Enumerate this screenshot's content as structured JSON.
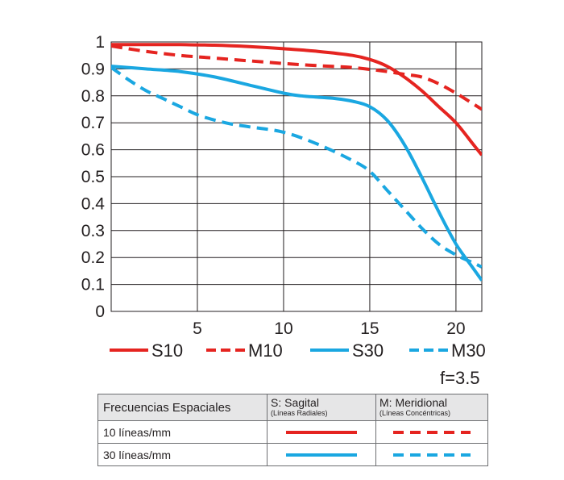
{
  "chart_data": {
    "type": "line",
    "xlim": [
      0,
      21.5
    ],
    "ylim": [
      0,
      1
    ],
    "x_ticks": [
      5,
      10,
      15,
      20
    ],
    "y_ticks": [
      0,
      0.1,
      0.2,
      0.3,
      0.4,
      0.5,
      0.6,
      0.7,
      0.8,
      0.9,
      1
    ],
    "grid": true,
    "legend_position": "bottom",
    "series": [
      {
        "name": "S10",
        "color": "#e52420",
        "dash": "solid",
        "x": [
          0,
          2,
          4,
          6,
          8,
          10,
          12,
          14,
          15,
          16,
          17,
          18,
          19,
          20,
          21,
          21.5
        ],
        "y": [
          0.99,
          0.99,
          0.99,
          0.988,
          0.983,
          0.975,
          0.965,
          0.95,
          0.935,
          0.91,
          0.87,
          0.82,
          0.76,
          0.7,
          0.62,
          0.58
        ]
      },
      {
        "name": "M10",
        "color": "#e52420",
        "dash": "dashed",
        "x": [
          0,
          2,
          4,
          6,
          8,
          10,
          12,
          14,
          16,
          17,
          18,
          19,
          20,
          21,
          21.5
        ],
        "y": [
          0.985,
          0.965,
          0.95,
          0.94,
          0.93,
          0.92,
          0.912,
          0.905,
          0.89,
          0.88,
          0.87,
          0.845,
          0.81,
          0.77,
          0.75
        ]
      },
      {
        "name": "S30",
        "color": "#1aa7e1",
        "dash": "solid",
        "x": [
          0,
          2,
          4,
          6,
          8,
          10,
          11,
          12,
          13,
          14,
          15,
          16,
          17,
          18,
          19,
          20,
          21,
          21.5
        ],
        "y": [
          0.91,
          0.9,
          0.89,
          0.87,
          0.84,
          0.81,
          0.8,
          0.795,
          0.79,
          0.78,
          0.76,
          0.71,
          0.62,
          0.5,
          0.37,
          0.25,
          0.16,
          0.115
        ]
      },
      {
        "name": "M30",
        "color": "#1aa7e1",
        "dash": "dashed",
        "x": [
          0,
          1,
          2,
          3,
          4,
          5,
          6,
          7,
          8,
          10,
          12,
          14,
          15,
          16,
          17,
          18,
          19,
          20,
          21,
          21.5
        ],
        "y": [
          0.905,
          0.86,
          0.82,
          0.79,
          0.76,
          0.73,
          0.71,
          0.695,
          0.685,
          0.665,
          0.62,
          0.56,
          0.52,
          0.45,
          0.38,
          0.31,
          0.25,
          0.21,
          0.18,
          0.165
        ]
      }
    ]
  },
  "aperture": "f=3.5",
  "table": {
    "header": {
      "col1": "Frecuencias Espaciales",
      "col2_title": "S: Sagital",
      "col2_note": "(Líneas Radiales)",
      "col3_title": "M: Meridional",
      "col3_note": "(Líneas Concéntricas)"
    },
    "rows": [
      {
        "label": "10 líneas/mm",
        "color": "#e52420"
      },
      {
        "label": "30 líneas/mm",
        "color": "#1aa7e1"
      }
    ]
  }
}
